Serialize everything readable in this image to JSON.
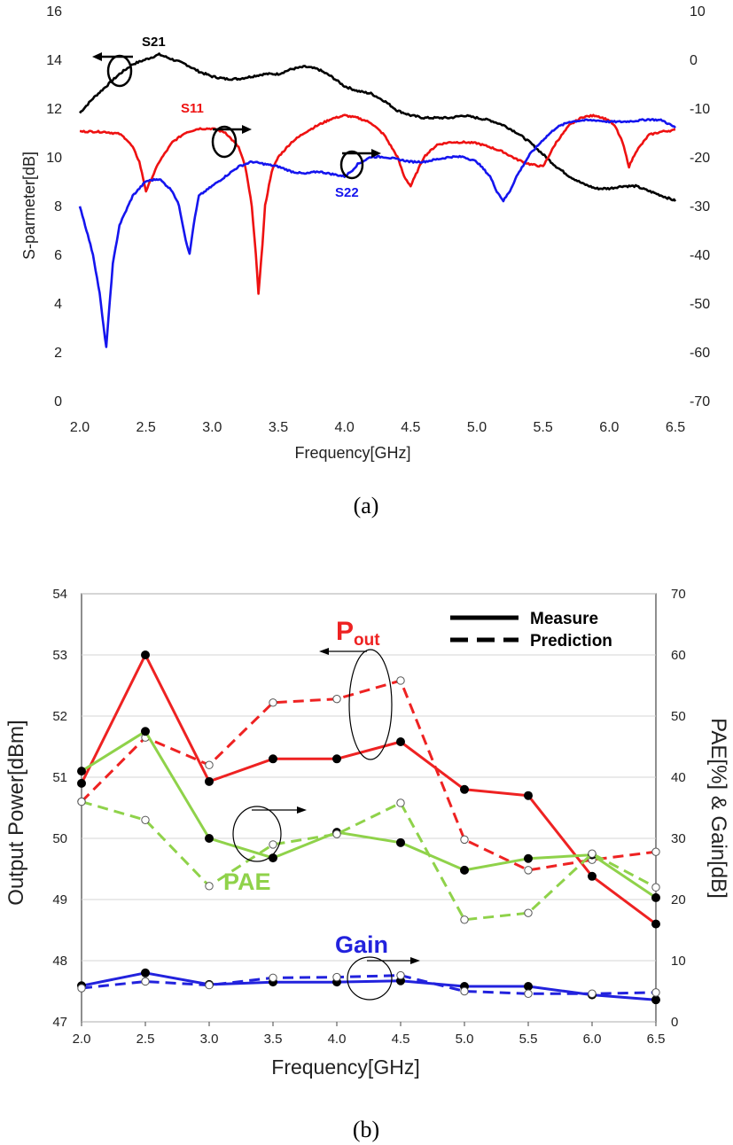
{
  "figure": {
    "caption_a": "(a)",
    "caption_b": "(b)"
  },
  "chart_data": [
    {
      "type": "line",
      "panel": "a",
      "xlabel": "Frequency[GHz]",
      "ylabel_left": "S-parmeter[dB]",
      "ylabel_right": "",
      "xlim": [
        2.0,
        6.5
      ],
      "ylim_left": [
        0,
        16
      ],
      "ylim_right": [
        -70,
        10
      ],
      "x_ticks": [
        "2.0",
        "2.5",
        "3.0",
        "3.5",
        "4.0",
        "4.5",
        "5.0",
        "5.5",
        "6.0",
        "6.5"
      ],
      "y_ticks_left": [
        "0",
        "2",
        "4",
        "6",
        "8",
        "10",
        "12",
        "14",
        "16"
      ],
      "y_ticks_right": [
        "-70",
        "-60",
        "-50",
        "-40",
        "-30",
        "-20",
        "-10",
        "0",
        "10"
      ],
      "grid": false,
      "series": [
        {
          "name": "S21",
          "axis": "left",
          "color": "#000000",
          "x": [
            2.0,
            2.1,
            2.2,
            2.3,
            2.4,
            2.5,
            2.6,
            2.7,
            2.8,
            2.9,
            3.0,
            3.1,
            3.2,
            3.3,
            3.4,
            3.5,
            3.6,
            3.7,
            3.8,
            3.9,
            4.0,
            4.1,
            4.2,
            4.3,
            4.4,
            4.5,
            4.6,
            4.7,
            4.8,
            4.9,
            5.0,
            5.1,
            5.2,
            5.3,
            5.4,
            5.5,
            5.6,
            5.7,
            5.8,
            5.9,
            6.0,
            6.1,
            6.2,
            6.3,
            6.4,
            6.5
          ],
          "y": [
            11.8,
            12.4,
            12.9,
            13.4,
            13.8,
            14.0,
            14.2,
            14.0,
            13.8,
            13.5,
            13.3,
            13.2,
            13.2,
            13.3,
            13.4,
            13.4,
            13.6,
            13.7,
            13.6,
            13.3,
            12.9,
            12.7,
            12.6,
            12.3,
            11.9,
            11.7,
            11.6,
            11.6,
            11.6,
            11.7,
            11.6,
            11.5,
            11.3,
            11.0,
            10.6,
            10.1,
            9.6,
            9.2,
            8.9,
            8.7,
            8.7,
            8.8,
            8.8,
            8.6,
            8.4,
            8.2
          ]
        },
        {
          "name": "S11",
          "axis": "right",
          "color": "#ee1111",
          "x": [
            2.0,
            2.1,
            2.2,
            2.3,
            2.35,
            2.4,
            2.45,
            2.5,
            2.55,
            2.6,
            2.7,
            2.8,
            2.9,
            3.0,
            3.1,
            3.2,
            3.25,
            3.3,
            3.33,
            3.35,
            3.38,
            3.4,
            3.45,
            3.5,
            3.6,
            3.7,
            3.8,
            3.9,
            4.0,
            4.1,
            4.2,
            4.3,
            4.4,
            4.45,
            4.5,
            4.55,
            4.6,
            4.7,
            4.8,
            4.9,
            5.0,
            5.1,
            5.2,
            5.3,
            5.4,
            5.5,
            5.6,
            5.7,
            5.8,
            5.9,
            6.0,
            6.05,
            6.1,
            6.15,
            6.2,
            6.3,
            6.4,
            6.5
          ],
          "y": [
            -14.8,
            -14.8,
            -14.9,
            -15.3,
            -16.3,
            -18.0,
            -21.0,
            -27.0,
            -24.0,
            -21.0,
            -17.0,
            -15.0,
            -14.2,
            -14.2,
            -15.0,
            -18.0,
            -22.0,
            -30.0,
            -40.0,
            -48.0,
            -38.0,
            -30.0,
            -23.0,
            -20.0,
            -17.0,
            -15.0,
            -13.5,
            -12.2,
            -11.5,
            -12.0,
            -13.0,
            -15.5,
            -20.0,
            -24.0,
            -26.0,
            -23.0,
            -20.0,
            -17.5,
            -17.0,
            -17.0,
            -17.2,
            -18.0,
            -19.0,
            -20.5,
            -21.5,
            -22.0,
            -17.0,
            -13.5,
            -11.8,
            -11.5,
            -12.5,
            -14.0,
            -17.0,
            -22.0,
            -19.0,
            -15.5,
            -14.8,
            -14.5
          ]
        },
        {
          "name": "S22",
          "axis": "right",
          "color": "#1515ee",
          "x": [
            2.0,
            2.05,
            2.1,
            2.15,
            2.18,
            2.2,
            2.22,
            2.25,
            2.3,
            2.4,
            2.5,
            2.6,
            2.7,
            2.75,
            2.8,
            2.83,
            2.86,
            2.9,
            3.0,
            3.1,
            3.2,
            3.3,
            3.4,
            3.5,
            3.6,
            3.7,
            3.8,
            3.9,
            4.0,
            4.05,
            4.1,
            4.2,
            4.3,
            4.4,
            4.5,
            4.6,
            4.7,
            4.8,
            4.9,
            5.0,
            5.1,
            5.15,
            5.2,
            5.25,
            5.3,
            5.4,
            5.5,
            5.6,
            5.7,
            5.8,
            5.9,
            6.0,
            6.1,
            6.2,
            6.3,
            6.4,
            6.5
          ],
          "y": [
            -30.0,
            -35.0,
            -40.0,
            -48.0,
            -55.0,
            -59.0,
            -52.0,
            -42.0,
            -34.0,
            -28.0,
            -25.0,
            -24.5,
            -27.0,
            -30.0,
            -37.0,
            -40.0,
            -34.0,
            -28.0,
            -26.0,
            -24.0,
            -22.0,
            -21.0,
            -21.5,
            -22.0,
            -23.0,
            -23.5,
            -23.0,
            -23.5,
            -24.0,
            -23.0,
            -21.5,
            -20.0,
            -20.0,
            -20.5,
            -21.0,
            -21.0,
            -20.5,
            -20.0,
            -20.0,
            -21.0,
            -24.0,
            -27.0,
            -29.0,
            -27.0,
            -24.0,
            -19.5,
            -16.5,
            -14.0,
            -12.8,
            -12.5,
            -12.5,
            -12.8,
            -12.8,
            -12.6,
            -12.3,
            -12.5,
            -14.0
          ]
        }
      ],
      "annotations": [
        "S21",
        "S11",
        "S22"
      ]
    },
    {
      "type": "line",
      "panel": "b",
      "xlabel": "Frequency[GHz]",
      "ylabel_left": "Output Power[dBm]",
      "ylabel_right": "PAE[%] & Gain[dB]",
      "xlim": [
        2.0,
        6.5
      ],
      "ylim_left": [
        47,
        54
      ],
      "ylim_right": [
        0,
        70
      ],
      "x_ticks": [
        "2.0",
        "2.5",
        "3.0",
        "3.5",
        "4.0",
        "4.5",
        "5.0",
        "5.5",
        "6.0",
        "6.5"
      ],
      "y_ticks_left": [
        "47",
        "48",
        "49",
        "50",
        "51",
        "52",
        "53",
        "54"
      ],
      "y_ticks_right": [
        "0",
        "10",
        "20",
        "30",
        "40",
        "50",
        "60",
        "70"
      ],
      "grid": true,
      "legend": {
        "position": "top-right",
        "entries": [
          {
            "label": "Measure",
            "style": "solid"
          },
          {
            "label": "Prediction",
            "style": "dashed"
          }
        ]
      },
      "series_labels": {
        "pout_main": "P",
        "pout_sub": "out",
        "pae": "PAE",
        "gain": "Gain"
      },
      "x": [
        2.0,
        2.5,
        3.0,
        3.5,
        4.0,
        4.5,
        5.0,
        5.5,
        6.0,
        6.5
      ],
      "series": [
        {
          "name": "Pout Measure",
          "axis": "left",
          "color": "#ee2222",
          "style": "solid",
          "values": [
            50.9,
            53.0,
            50.93,
            51.3,
            51.3,
            51.58,
            50.8,
            50.7,
            49.38,
            48.6
          ]
        },
        {
          "name": "Pout Prediction",
          "axis": "left",
          "color": "#ee2222",
          "style": "dashed",
          "values": [
            50.6,
            51.65,
            51.2,
            52.22,
            52.28,
            52.58,
            49.98,
            49.48,
            49.65,
            49.78
          ]
        },
        {
          "name": "PAE Measure",
          "axis": "right",
          "color": "#8fd24a",
          "style": "solid",
          "values": [
            41.0,
            47.5,
            30.0,
            26.8,
            31.0,
            29.3,
            24.8,
            26.7,
            27.3,
            20.3
          ]
        },
        {
          "name": "PAE Prediction",
          "axis": "right",
          "color": "#8fd24a",
          "style": "dashed",
          "values": [
            36.0,
            33.0,
            22.2,
            29.0,
            30.7,
            35.8,
            16.7,
            17.8,
            27.5,
            22.0
          ]
        },
        {
          "name": "Gain Measure",
          "axis": "right",
          "color": "#2222dd",
          "style": "solid",
          "values": [
            5.9,
            8.0,
            6.1,
            6.5,
            6.5,
            6.7,
            5.8,
            5.8,
            4.4,
            3.6
          ]
        },
        {
          "name": "Gain Prediction",
          "axis": "right",
          "color": "#2222dd",
          "style": "dashed",
          "values": [
            5.5,
            6.6,
            6.0,
            7.2,
            7.3,
            7.6,
            5.0,
            4.6,
            4.6,
            4.8
          ]
        }
      ]
    }
  ]
}
